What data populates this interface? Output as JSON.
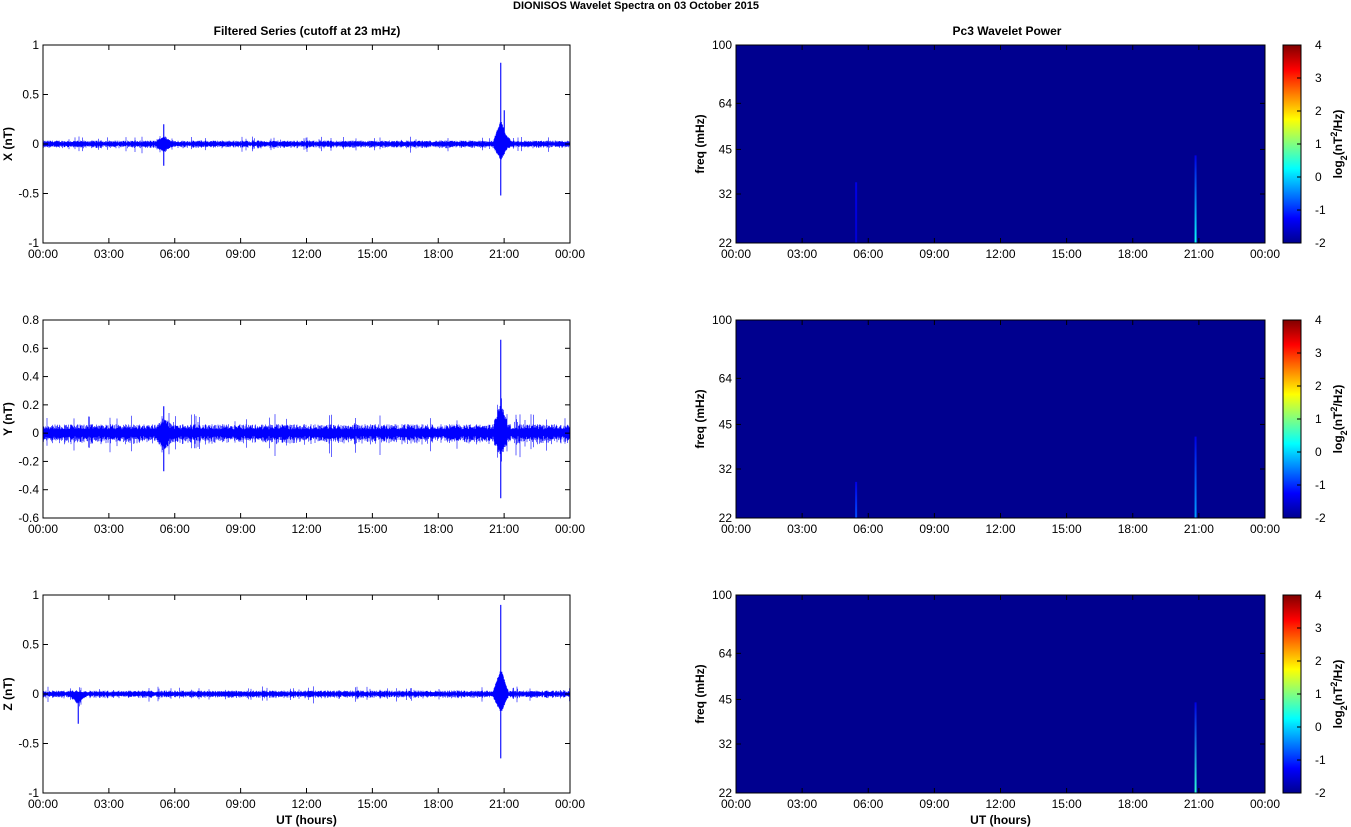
{
  "figure": {
    "title": "DIONISOS Wavelet Spectra on 03 October   2015",
    "left_column_title": "Filtered Series (cutoff at 23 mHz)",
    "right_column_title": "Pc3 Wavelet Power"
  },
  "colors": {
    "trace": "#0000ff",
    "background_power": "#00008f"
  },
  "chart_data": [
    {
      "type": "line",
      "panel": "X",
      "title": "Filtered Series (cutoff at 23 mHz)",
      "xlabel": "",
      "ylabel": "X (nT)",
      "x_ticks": [
        "00:00",
        "03:00",
        "06:00",
        "09:00",
        "12:00",
        "15:00",
        "18:00",
        "21:00",
        "00:00"
      ],
      "y_ticks": [
        "-1",
        "-0.5",
        "0",
        "0.5",
        "1"
      ],
      "ylim": [
        -1,
        1
      ],
      "xlim_hours": [
        0,
        24
      ],
      "noise_amplitude": 0.025,
      "spikes": [
        {
          "hour": 5.5,
          "max": 0.2,
          "min": -0.22
        },
        {
          "hour": 20.85,
          "max": 0.82,
          "min": -0.52
        },
        {
          "hour": 21.0,
          "max": 0.34,
          "min": -0.1
        }
      ]
    },
    {
      "type": "line",
      "panel": "Y",
      "title": "",
      "xlabel": "",
      "ylabel": "Y (nT)",
      "x_ticks": [
        "00:00",
        "03:00",
        "06:00",
        "09:00",
        "12:00",
        "15:00",
        "18:00",
        "21:00",
        "00:00"
      ],
      "y_ticks": [
        "-0.6",
        "-0.4",
        "-0.2",
        "0",
        "0.2",
        "0.4",
        "0.6",
        "0.8"
      ],
      "ylim": [
        -0.6,
        0.8
      ],
      "xlim_hours": [
        0,
        24
      ],
      "noise_amplitude": 0.045,
      "spikes": [
        {
          "hour": 5.5,
          "max": 0.19,
          "min": -0.27
        },
        {
          "hour": 20.85,
          "max": 0.66,
          "min": -0.46
        }
      ]
    },
    {
      "type": "line",
      "panel": "Z",
      "title": "",
      "xlabel": "UT (hours)",
      "ylabel": "Z (nT)",
      "x_ticks": [
        "00:00",
        "03:00",
        "06:00",
        "09:00",
        "12:00",
        "15:00",
        "18:00",
        "21:00",
        "00:00"
      ],
      "y_ticks": [
        "-1",
        "-0.5",
        "0",
        "0.5",
        "1"
      ],
      "ylim": [
        -1,
        1
      ],
      "xlim_hours": [
        0,
        24
      ],
      "noise_amplitude": 0.025,
      "spikes": [
        {
          "hour": 1.6,
          "max": 0.02,
          "min": -0.3
        },
        {
          "hour": 20.85,
          "max": 0.9,
          "min": -0.65
        }
      ]
    },
    {
      "type": "heatmap",
      "panel": "X power",
      "title": "Pc3 Wavelet Power",
      "xlabel": "",
      "ylabel": "freq (mHz)",
      "x_ticks": [
        "00:00",
        "03:00",
        "06:00",
        "09:00",
        "12:00",
        "15:00",
        "18:00",
        "21:00",
        "00:00"
      ],
      "y_ticks": [
        "22",
        "32",
        "45",
        "64",
        "100"
      ],
      "y_scale": "log",
      "ylim_mHz": [
        22,
        100
      ],
      "colorbar_label": "log2(nT2/Hz)",
      "colorbar_ticks": [
        "-2",
        "-1",
        "0",
        "1",
        "2",
        "3",
        "4"
      ],
      "clim": [
        -2,
        4
      ],
      "features": [
        {
          "hour": 5.45,
          "freq_top_mHz": 35,
          "peak": -1.5
        },
        {
          "hour": 20.85,
          "freq_top_mHz": 43,
          "peak": 0.3
        }
      ]
    },
    {
      "type": "heatmap",
      "panel": "Y power",
      "title": "",
      "xlabel": "",
      "ylabel": "freq (mHz)",
      "x_ticks": [
        "00:00",
        "03:00",
        "06:00",
        "09:00",
        "12:00",
        "15:00",
        "18:00",
        "21:00",
        "00:00"
      ],
      "y_ticks": [
        "22",
        "32",
        "45",
        "64",
        "100"
      ],
      "y_scale": "log",
      "ylim_mHz": [
        22,
        100
      ],
      "colorbar_label": "log2(nT2/Hz)",
      "colorbar_ticks": [
        "-2",
        "-1",
        "0",
        "1",
        "2",
        "3",
        "4"
      ],
      "clim": [
        -2,
        4
      ],
      "features": [
        {
          "hour": 5.45,
          "freq_top_mHz": 29,
          "peak": -0.8
        },
        {
          "hour": 20.85,
          "freq_top_mHz": 41,
          "peak": -0.3
        }
      ]
    },
    {
      "type": "heatmap",
      "panel": "Z power",
      "title": "",
      "xlabel": "UT (hours)",
      "ylabel": "freq (mHz)",
      "x_ticks": [
        "00:00",
        "03:00",
        "06:00",
        "09:00",
        "12:00",
        "15:00",
        "18:00",
        "21:00",
        "00:00"
      ],
      "y_ticks": [
        "22",
        "32",
        "45",
        "64",
        "100"
      ],
      "y_scale": "log",
      "ylim_mHz": [
        22,
        100
      ],
      "colorbar_label": "log2(nT2/Hz)",
      "colorbar_ticks": [
        "-2",
        "-1",
        "0",
        "1",
        "2",
        "3",
        "4"
      ],
      "clim": [
        -2,
        4
      ],
      "features": [
        {
          "hour": 20.85,
          "freq_top_mHz": 44,
          "peak": 0.5
        }
      ]
    }
  ]
}
